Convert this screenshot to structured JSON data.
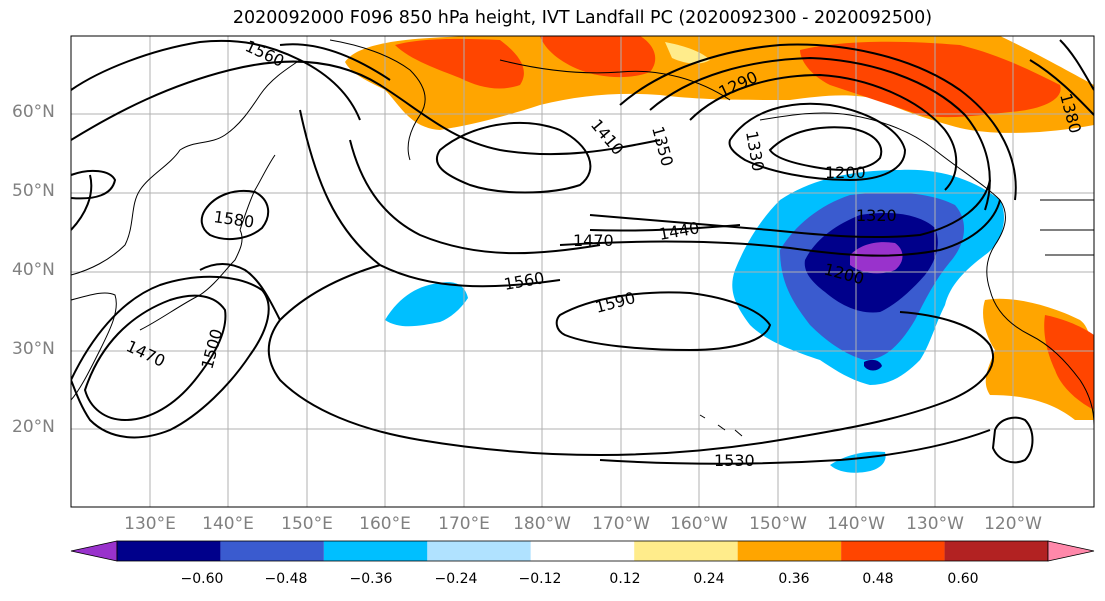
{
  "title": "2020092000 F096 850 hPa height, IVT Landfall PC (2020092300 - 2020092500)",
  "map": {
    "lat_labels": [
      "60°N",
      "50°N",
      "40°N",
      "30°N",
      "20°N"
    ],
    "lon_labels": [
      "130°E",
      "140°E",
      "150°E",
      "160°E",
      "170°E",
      "180°W",
      "170°W",
      "160°W",
      "150°W",
      "140°W",
      "130°W",
      "120°W"
    ],
    "contour_labels": [
      "1560",
      "1290",
      "1380",
      "1410",
      "1350",
      "1330",
      "1200",
      "1580",
      "1320",
      "1470",
      "1440",
      "1200",
      "1560",
      "1590",
      "1470",
      "1500",
      "1530"
    ]
  },
  "colorbar": {
    "colors": [
      "#9932CC",
      "#00008B",
      "#3A5BCF",
      "#00BFFF",
      "#B0E2FF",
      "#FFFFFF",
      "#FFEC8B",
      "#FFA500",
      "#FF4500",
      "#B22222",
      "#FF88AA"
    ],
    "tick_labels": [
      "−0.60",
      "−0.48",
      "−0.36",
      "−0.24",
      "−0.12",
      "0.12",
      "0.24",
      "0.36",
      "0.48",
      "0.60"
    ]
  }
}
